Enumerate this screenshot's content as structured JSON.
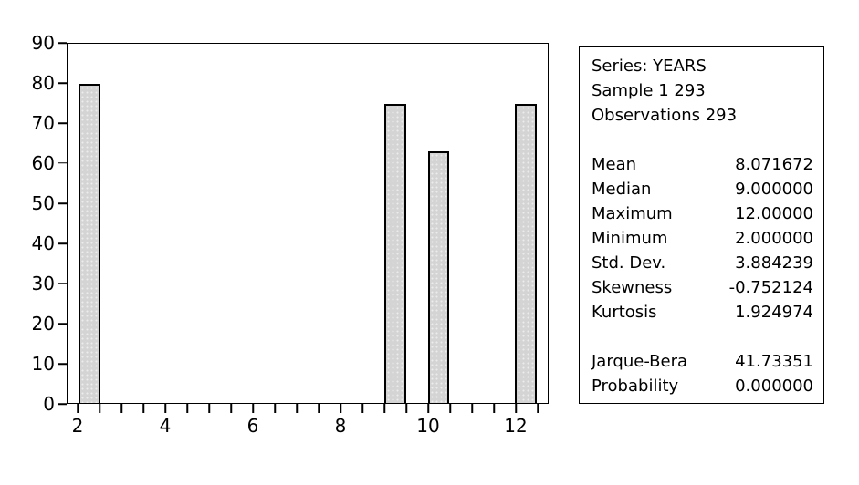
{
  "chart_data": {
    "type": "bar",
    "title": "",
    "xlabel": "",
    "ylabel": "",
    "x": [
      2,
      9,
      10,
      12
    ],
    "bin_width": 0.5,
    "values": [
      80,
      75,
      63,
      75
    ],
    "xlim": [
      1.75,
      12.75
    ],
    "ylim": [
      0,
      90
    ],
    "y_ticks": [
      0,
      10,
      20,
      30,
      40,
      50,
      60,
      70,
      80,
      90
    ],
    "x_ticks_start": 2,
    "x_ticks_end": 12.5,
    "x_tick_step": 0.5,
    "x_label_ticks": [
      2,
      4,
      6,
      8,
      10,
      12
    ],
    "grid": false,
    "legend": false,
    "bar_fill": "#d4d4d4",
    "bar_border": "#000000"
  },
  "stats_box": {
    "header_lines": [
      "Series: YEARS",
      "Sample 1 293",
      "Observations 293"
    ],
    "stats": [
      {
        "label": "Mean",
        "value": "8.071672"
      },
      {
        "label": "Median",
        "value": "9.000000"
      },
      {
        "label": "Maximum",
        "value": "12.00000"
      },
      {
        "label": "Minimum",
        "value": "2.000000"
      },
      {
        "label": "Std. Dev.",
        "value": "3.884239"
      },
      {
        "label": "Skewness",
        "value": "-0.752124"
      },
      {
        "label": "Kurtosis",
        "value": "1.924974"
      }
    ],
    "tests": [
      {
        "label": "Jarque-Bera",
        "value": "41.73351"
      },
      {
        "label": "Probability",
        "value": "0.000000"
      }
    ]
  }
}
